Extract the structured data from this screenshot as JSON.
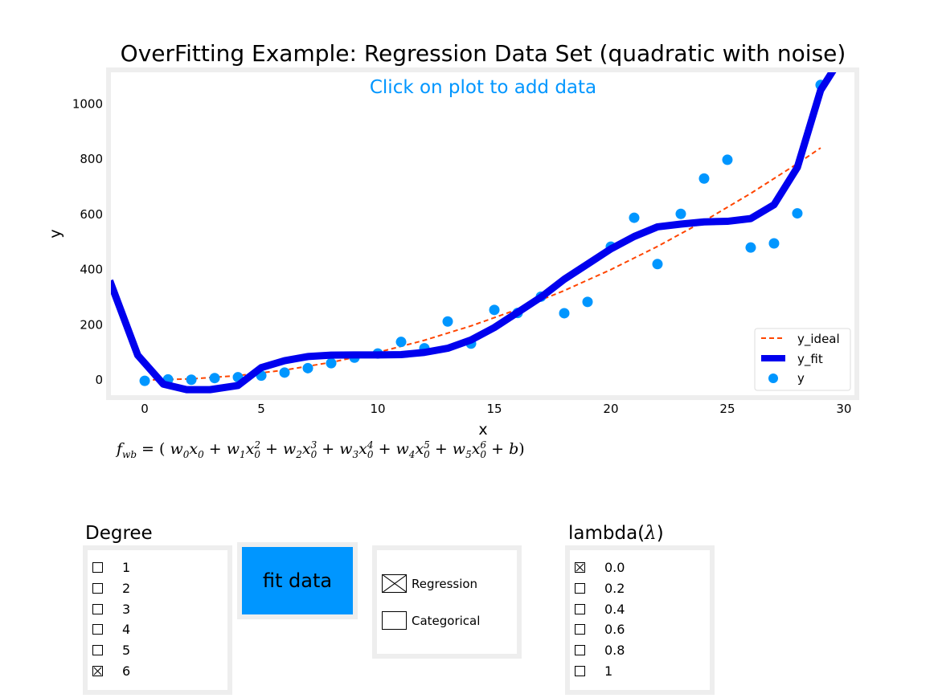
{
  "chart_data": {
    "type": "scatter",
    "title": "OverFitting Example: Regression Data Set (quadratic with noise)",
    "annotation": "Click on plot to add data",
    "xlabel": "x",
    "ylabel": "y",
    "xlim": [
      -1.45,
      30.45
    ],
    "ylim": [
      -55,
      1115
    ],
    "xticks": [
      0,
      5,
      10,
      15,
      20,
      25,
      30
    ],
    "yticks": [
      0,
      200,
      400,
      600,
      800,
      1000
    ],
    "legend_position": "lower-right",
    "grid": false,
    "colors": {
      "y_ideal": "#ff4500",
      "y_fit": "#0000ee",
      "y": "#0096ff",
      "frame": "#eeeeee"
    },
    "series": [
      {
        "name": "y_ideal",
        "kind": "dashed-line",
        "x": [
          0,
          2,
          4,
          6,
          8,
          10,
          12,
          14,
          16,
          18,
          20,
          22,
          24,
          26,
          28,
          29
        ],
        "y": [
          0,
          4,
          16,
          36,
          64,
          100,
          144,
          196,
          256,
          324,
          400,
          484,
          576,
          676,
          784,
          841
        ]
      },
      {
        "name": "y_fit",
        "kind": "thick-line",
        "x": [
          -1.5,
          -0.3,
          0.8,
          1.8,
          2.8,
          4,
          5,
          6,
          7,
          8,
          9,
          10,
          11,
          12,
          13,
          14,
          15,
          16,
          17,
          18,
          19,
          20,
          21,
          22,
          23,
          24,
          25,
          26,
          27,
          28,
          29,
          29.6
        ],
        "y": [
          360,
          90,
          -15,
          -35,
          -35,
          -20,
          45,
          70,
          85,
          90,
          91,
          91,
          92,
          100,
          115,
          145,
          190,
          245,
          300,
          365,
          420,
          475,
          520,
          555,
          565,
          573,
          575,
          585,
          635,
          770,
          1050,
          1130
        ]
      },
      {
        "name": "y",
        "kind": "points",
        "x": [
          0,
          1,
          2,
          3,
          4,
          5,
          6,
          7,
          8,
          9,
          10,
          11,
          12,
          13,
          14,
          15,
          16,
          17,
          18,
          19,
          20,
          21,
          22,
          23,
          24,
          25,
          26,
          27,
          28,
          29
        ],
        "y": [
          -3,
          2,
          1,
          7,
          10,
          16,
          27,
          43,
          61,
          81,
          96,
          138,
          115,
          212,
          132,
          254,
          243,
          302,
          242,
          283,
          483,
          588,
          420,
          602,
          730,
          798,
          480,
          495,
          604,
          1069
        ]
      }
    ],
    "formula": {
      "lhs": "f",
      "lhs_sub": "wb",
      "rhs_terms": [
        {
          "w": "w",
          "ws": "0",
          "x": "x",
          "xs": "0",
          "p": ""
        },
        {
          "w": "w",
          "ws": "1",
          "x": "x",
          "xs": "0",
          "p": "2"
        },
        {
          "w": "w",
          "ws": "2",
          "x": "x",
          "xs": "0",
          "p": "3"
        },
        {
          "w": "w",
          "ws": "3",
          "x": "x",
          "xs": "0",
          "p": "4"
        },
        {
          "w": "w",
          "ws": "4",
          "x": "x",
          "xs": "0",
          "p": "5"
        },
        {
          "w": "w",
          "ws": "5",
          "x": "x",
          "xs": "0",
          "p": "6"
        }
      ],
      "bias": "b"
    }
  },
  "controls": {
    "degree": {
      "title": "Degree",
      "options": [
        {
          "label": "1",
          "checked": false
        },
        {
          "label": "2",
          "checked": false
        },
        {
          "label": "3",
          "checked": false
        },
        {
          "label": "4",
          "checked": false
        },
        {
          "label": "5",
          "checked": false
        },
        {
          "label": "6",
          "checked": true
        }
      ]
    },
    "fit_button": {
      "label": "fit data",
      "color": "#0096ff"
    },
    "mode": {
      "options": [
        {
          "label": "Regression",
          "checked": true
        },
        {
          "label": "Categorical",
          "checked": false
        }
      ]
    },
    "lambda": {
      "title_prefix": "lambda(",
      "title_symbol": "λ",
      "title_suffix": ")",
      "options": [
        {
          "label": "0.0",
          "checked": true
        },
        {
          "label": "0.2",
          "checked": false
        },
        {
          "label": "0.4",
          "checked": false
        },
        {
          "label": "0.6",
          "checked": false
        },
        {
          "label": "0.8",
          "checked": false
        },
        {
          "label": "1",
          "checked": false
        }
      ]
    }
  }
}
